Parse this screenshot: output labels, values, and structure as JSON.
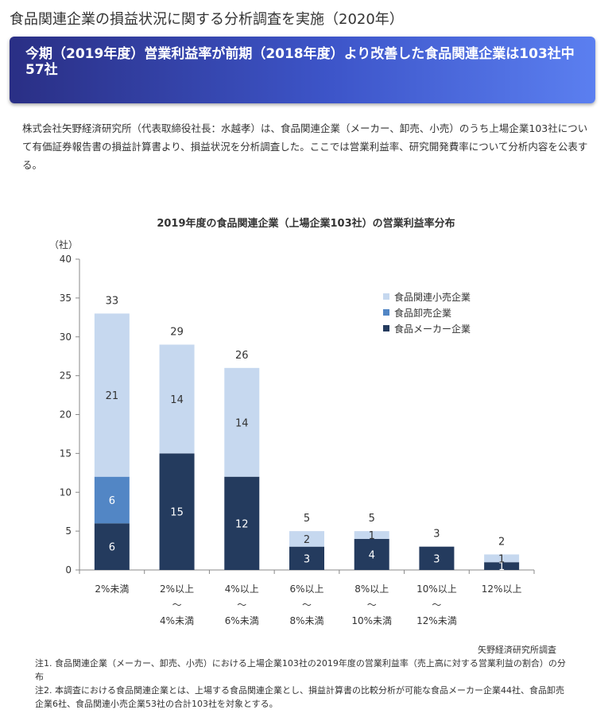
{
  "page": {
    "title": "食品関連企業の損益状況に関する分析調査を実施（2020年）",
    "headline": "今期（2019年度）営業利益率が前期（2018年度）より改善した食品関連企業は103社中57社",
    "intro": "株式会社矢野経済研究所（代表取締役社長：水越孝）は、食品関連企業（メーカー、卸売、小売）のうち上場企業103社について有価証券報告書の損益計算書より、損益状況を分析調査した。ここでは営業利益率、研究開発費率について分析内容を公表する。",
    "source": "矢野経済研究所調査",
    "notes": [
      "注1. 食品関連企業（メーカー、卸売、小売）における上場企業103社の2019年度の営業利益率（売上高に対する営業利益の割合）の分布",
      "注2. 本調査における食品関連企業とは、上場する食品関連企業とし、損益計算書の比較分析が可能な食品メーカー企業44社、食品卸売企業6社、食品関連小売企業53社の合計103社を対象とする。"
    ]
  },
  "chart_data": {
    "type": "bar",
    "stacked": true,
    "title": "2019年度の食品関連企業（上場企業103社）の営業利益率分布",
    "ylabel": "（社）",
    "ylim": [
      0,
      40
    ],
    "yticks": [
      0,
      5,
      10,
      15,
      20,
      25,
      30,
      35,
      40
    ],
    "categories": [
      [
        "2%未満"
      ],
      [
        "2%以上",
        "～",
        "4%未満"
      ],
      [
        "4%以上",
        "～",
        "6%未満"
      ],
      [
        "6%以上",
        "～",
        "8%未満"
      ],
      [
        "8%以上",
        "～",
        "10%未満"
      ],
      [
        "10%以上",
        "～",
        "12%未満"
      ],
      [
        "12%以上"
      ]
    ],
    "series": [
      {
        "name": "食品メーカー企業",
        "color": "#243b5e",
        "values": [
          6,
          15,
          12,
          3,
          4,
          3,
          1
        ]
      },
      {
        "name": "食品卸売企業",
        "color": "#5286c5",
        "values": [
          6,
          0,
          0,
          0,
          0,
          0,
          0
        ]
      },
      {
        "name": "食品関連小売企業",
        "color": "#c6d8ef",
        "values": [
          21,
          14,
          14,
          2,
          1,
          0,
          1
        ]
      }
    ],
    "totals": [
      33,
      29,
      26,
      5,
      5,
      3,
      2
    ],
    "legend_position": "top-right",
    "grid": false
  }
}
